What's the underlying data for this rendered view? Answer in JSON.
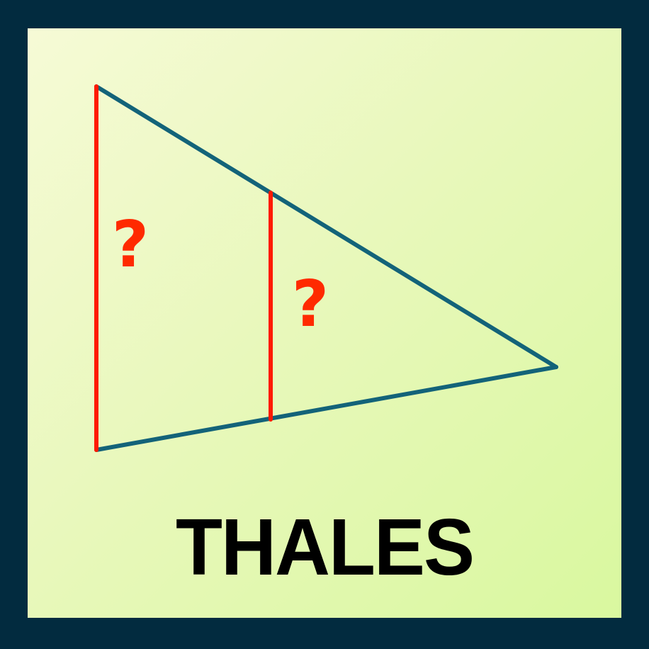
{
  "diagram": {
    "left_side_label": "?",
    "middle_segment_label": "?",
    "colors": {
      "background": "#022b3f",
      "triangle_lines": "#136379",
      "parallel_segments": "#ff1a00",
      "question_marks": "#ff2a00"
    }
  },
  "title": "THALES"
}
